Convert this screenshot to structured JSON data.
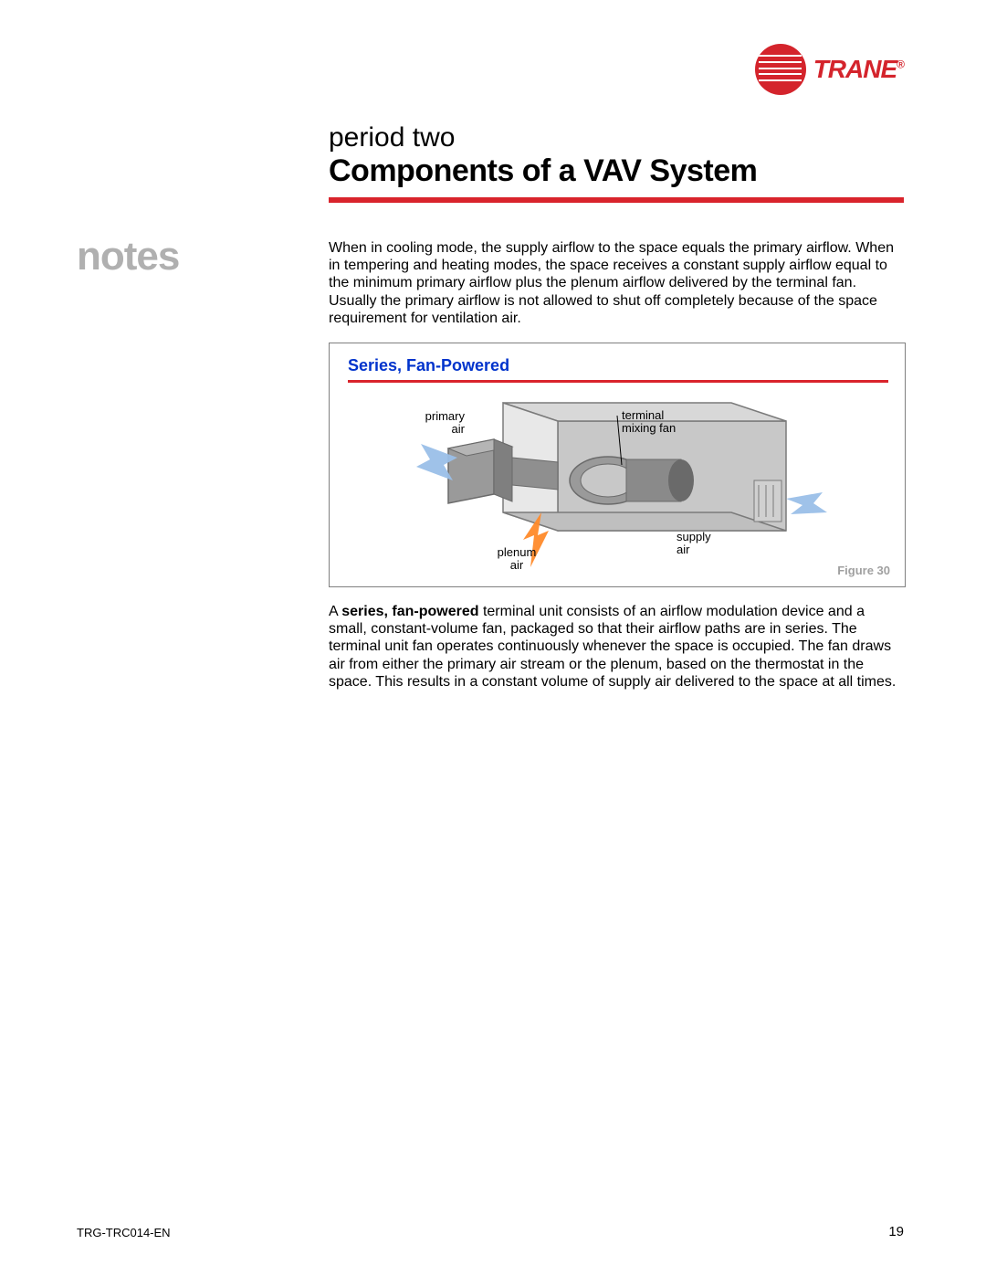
{
  "brand": {
    "name": "TRANE",
    "color": "#d4242c"
  },
  "header": {
    "period": "period two",
    "title": "Components of a VAV System",
    "rule_color": "#d9242c"
  },
  "notes_label": "notes",
  "paragraph1": "When in cooling mode, the supply airflow to the space equals the primary airflow. When in tempering and heating modes, the space receives a constant supply airflow equal to the minimum primary airflow plus the plenum airflow delivered by the terminal fan. Usually the primary airflow is not allowed to shut off completely because of the space requirement for ventilation air.",
  "figure": {
    "title": "Series, Fan-Powered",
    "title_color": "#0033cc",
    "caption": "Figure 30",
    "labels": {
      "primary_air": "primary\nair",
      "terminal_fan": "terminal\nmixing fan",
      "plenum_air": "plenum\nair",
      "supply_air": "supply\nair"
    },
    "colors": {
      "box_outer": "#7a7a7a",
      "box_face_light": "#e8e8e8",
      "box_face_dark": "#c8c8c8",
      "box_face_top": "#d8d8d8",
      "fan_body": "#9a9a9a",
      "fan_dark": "#6a6a6a",
      "arrow_cold": "#9abfe8",
      "arrow_hot": "#ff8a2a",
      "leader": "#000000"
    }
  },
  "paragraph2_lead": "series, fan-powered",
  "paragraph2": " terminal unit consists of an airflow modulation device and a small, constant-volume fan, packaged so that their airflow paths are in series. The terminal unit fan operates continuously whenever the space is occupied. The fan draws air from either the primary air stream or the plenum, based on the thermostat in the space. This results in a constant volume of supply air delivered to the space at all times.",
  "footer": {
    "doc_id": "TRG-TRC014-EN",
    "page": "19"
  }
}
